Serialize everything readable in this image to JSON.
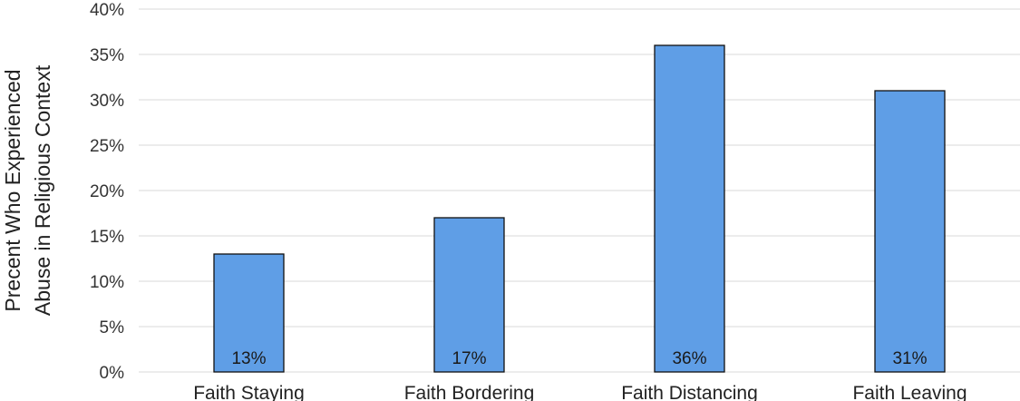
{
  "chart_data": {
    "type": "bar",
    "categories": [
      "Faith Staying",
      "Faith Bordering",
      "Faith Distancing",
      "Faith Leaving"
    ],
    "values": [
      13,
      17,
      36,
      31
    ],
    "data_labels": [
      "13%",
      "17%",
      "36%",
      "31%"
    ],
    "ylabel_lines": [
      "Precent Who Experienced",
      "Abuse in Religious Context"
    ],
    "yticks": [
      "0%",
      "5%",
      "10%",
      "15%",
      "20%",
      "25%",
      "30%",
      "35%",
      "40%"
    ],
    "ylim": [
      0,
      40
    ],
    "grid": true,
    "legend": "none",
    "bar_color": "#5f9ee6",
    "bar_stroke": "#111111"
  }
}
